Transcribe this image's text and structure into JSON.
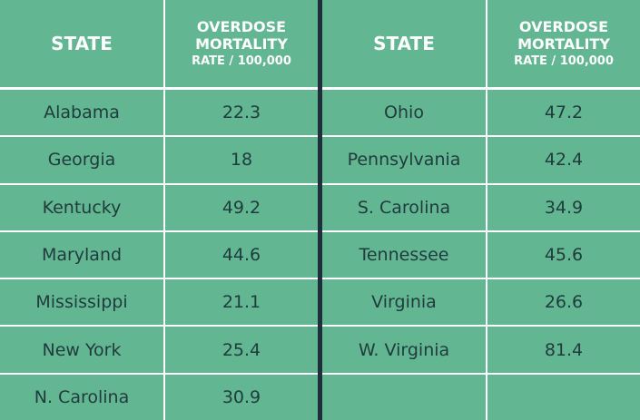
{
  "tables": [
    {
      "header": {
        "state": "STATE",
        "rate": "OVERDOSE MORTALITY",
        "unit": "RATE / 100,000"
      },
      "rows": [
        [
          "Alabama",
          22.3
        ],
        [
          "Georgia",
          18
        ],
        [
          "Kentucky",
          49.2
        ],
        [
          "Maryland",
          44.6
        ],
        [
          "Mississippi",
          21.1
        ],
        [
          "New York",
          25.4
        ],
        [
          "N. Carolina",
          30.9
        ]
      ]
    },
    {
      "header": {
        "state": "STATE",
        "rate": "OVERDOSE MORTALITY",
        "unit": "RATE / 100,000"
      },
      "rows": [
        [
          "Ohio",
          47.2
        ],
        [
          "Pennsylvania",
          42.4
        ],
        [
          "S. Carolina",
          34.9
        ],
        [
          "Tennessee",
          45.6
        ],
        [
          "Virginia",
          26.6
        ],
        [
          "W. Virginia",
          81.4
        ]
      ]
    }
  ]
}
